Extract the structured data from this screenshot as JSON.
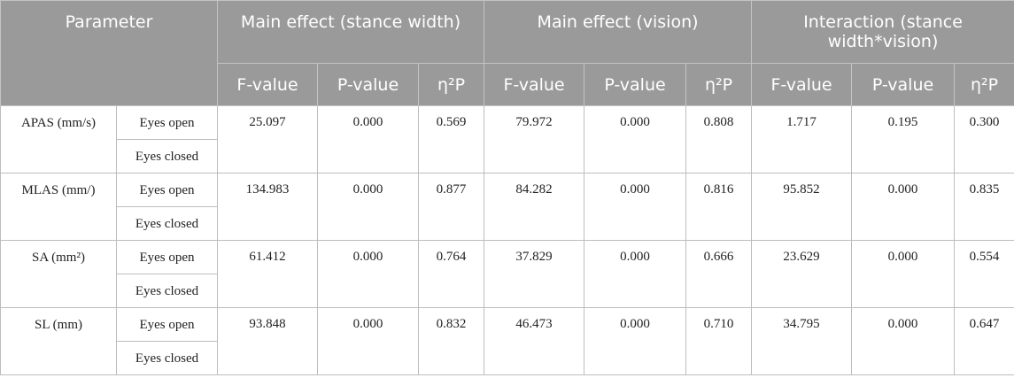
{
  "table": {
    "header": {
      "parameter": "Parameter",
      "main_effect_stance": "Main effect (stance width)",
      "main_effect_vision": "Main effect (vision)",
      "interaction": "Interaction (stance width*vision)",
      "f_value": "F-value",
      "p_value": "P-value",
      "eta_squared": "η²P"
    },
    "rows": [
      {
        "parameter": "APAS (mm/s)",
        "vision_1": "Eyes open",
        "vision_2": "Eyes closed",
        "stance": {
          "f": "25.097",
          "p": "0.000",
          "eta": "0.569"
        },
        "vision": {
          "f": "79.972",
          "p": "0.000",
          "eta": "0.808"
        },
        "interaction": {
          "f": "1.717",
          "p": "0.195",
          "eta": "0.300"
        }
      },
      {
        "parameter": "MLAS (mm/)",
        "vision_1": "Eyes open",
        "vision_2": "Eyes closed",
        "stance": {
          "f": "134.983",
          "p": "0.000",
          "eta": "0.877"
        },
        "vision": {
          "f": "84.282",
          "p": "0.000",
          "eta": "0.816"
        },
        "interaction": {
          "f": "95.852",
          "p": "0.000",
          "eta": "0.835"
        }
      },
      {
        "parameter": "SA (mm²)",
        "vision_1": "Eyes open",
        "vision_2": "Eyes closed",
        "stance": {
          "f": "61.412",
          "p": "0.000",
          "eta": "0.764"
        },
        "vision": {
          "f": "37.829",
          "p": "0.000",
          "eta": "0.666"
        },
        "interaction": {
          "f": "23.629",
          "p": "0.000",
          "eta": "0.554"
        }
      },
      {
        "parameter": "SL (mm)",
        "vision_1": "Eyes open",
        "vision_2": "Eyes closed",
        "stance": {
          "f": "93.848",
          "p": "0.000",
          "eta": "0.832"
        },
        "vision": {
          "f": "46.473",
          "p": "0.000",
          "eta": "0.710"
        },
        "interaction": {
          "f": "34.795",
          "p": "0.000",
          "eta": "0.647"
        }
      }
    ]
  }
}
